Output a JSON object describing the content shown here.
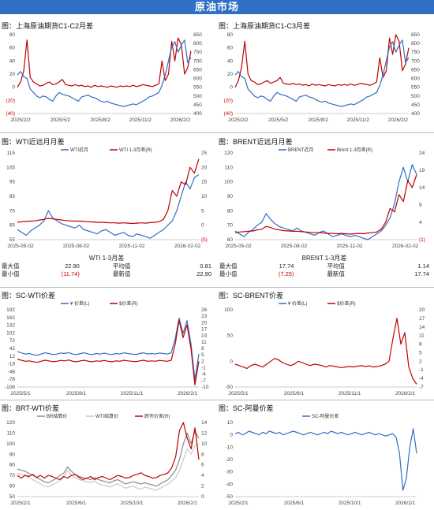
{
  "banner": "原油市场",
  "colors": {
    "blue": "#2f6fc4",
    "red": "#c00000",
    "gray": "#b7b7b7"
  },
  "sections": {
    "s1": "图：上海原油期货C1-C2月差",
    "s2": "图：上海原油期货C1-C3月差",
    "s3": "图：WTI近远月月差",
    "s4": "图：BRENT近远月月差",
    "s5": "图：SC-WTI价差",
    "s6": "图：SC-BRENT价差",
    "s7": "图：BRT-WTI价差",
    "s8": "图：SC-阿曼价差"
  },
  "wti_table": {
    "title": "WTI 1-3月差",
    "rows": [
      [
        "最大值",
        "22.90",
        "平均值",
        "0.81"
      ],
      [
        "最小值",
        "(11.74)",
        "最新值",
        "22.90"
      ]
    ]
  },
  "brent_table": {
    "title": "BRENT 1-3月差",
    "rows": [
      [
        "最大值",
        "17.74",
        "平均值",
        "1.14"
      ],
      [
        "最小值",
        "(7.25)",
        "最新值",
        "17.74"
      ]
    ]
  },
  "chart_data": [
    {
      "id": "c1",
      "type": "line",
      "x_ticks": [
        "2025/2/2",
        "2025/5/2",
        "2025/8/2",
        "2025/11/2",
        "2026/2/2"
      ],
      "y_left_ticks": [
        "80",
        "60",
        "40",
        "20",
        "0",
        "(20)",
        "(40)"
      ],
      "y_left": [
        -40,
        80
      ],
      "y_right_ticks": [
        "850",
        "800",
        "750",
        "700",
        "650",
        "600",
        "550",
        "500",
        "450",
        "400"
      ],
      "y_right": [
        400,
        850
      ],
      "series": [
        {
          "axis": "left",
          "color": "#c00000",
          "values": [
            0,
            8,
            25,
            72,
            15,
            8,
            5,
            2,
            3,
            6,
            8,
            4,
            5,
            8,
            12,
            4,
            3,
            2,
            4,
            2,
            3,
            1,
            2,
            0,
            3,
            1,
            2,
            1,
            0,
            2,
            1,
            0,
            2,
            1,
            2,
            1,
            3,
            1,
            2,
            4,
            3,
            2,
            1,
            3,
            5,
            40,
            10,
            20,
            70,
            40,
            75,
            65,
            20,
            30,
            55
          ]
        },
        {
          "axis": "right",
          "color": "#2f6fc4",
          "values": [
            620,
            640,
            610,
            600,
            540,
            520,
            500,
            490,
            500,
            495,
            480,
            470,
            500,
            520,
            510,
            505,
            500,
            490,
            480,
            470,
            495,
            500,
            505,
            495,
            490,
            480,
            470,
            465,
            470,
            460,
            455,
            450,
            445,
            440,
            445,
            450,
            455,
            450,
            460,
            470,
            480,
            495,
            500,
            510,
            520,
            560,
            620,
            700,
            780,
            810,
            750,
            790,
            820,
            690,
            720
          ]
        }
      ]
    },
    {
      "id": "c2",
      "type": "line",
      "x_ticks": [
        "2025/2/2",
        "2025/5/2",
        "2025/8/2",
        "2025/11/2",
        "2026/2/2"
      ],
      "y_left_ticks": [
        "80",
        "60",
        "40",
        "20",
        "0",
        "(20)",
        "(40)"
      ],
      "y_left": [
        -40,
        80
      ],
      "y_right_ticks": [
        "850",
        "800",
        "750",
        "700",
        "650",
        "600",
        "550",
        "500",
        "450",
        "400"
      ],
      "y_right": [
        400,
        850
      ],
      "series": [
        {
          "axis": "left",
          "color": "#c00000",
          "values": [
            0,
            10,
            30,
            70,
            20,
            10,
            8,
            4,
            5,
            8,
            10,
            6,
            8,
            10,
            15,
            6,
            5,
            4,
            6,
            4,
            5,
            3,
            4,
            2,
            5,
            3,
            4,
            3,
            2,
            4,
            3,
            2,
            4,
            3,
            4,
            3,
            5,
            3,
            4,
            6,
            5,
            4,
            3,
            5,
            8,
            45,
            15,
            25,
            75,
            50,
            80,
            70,
            25,
            35,
            60
          ]
        },
        {
          "axis": "right",
          "color": "#2f6fc4",
          "values": [
            620,
            640,
            610,
            600,
            540,
            520,
            500,
            490,
            500,
            495,
            480,
            470,
            500,
            520,
            510,
            505,
            500,
            490,
            480,
            470,
            495,
            500,
            505,
            495,
            490,
            480,
            470,
            465,
            470,
            460,
            455,
            450,
            445,
            440,
            445,
            450,
            455,
            450,
            460,
            470,
            480,
            495,
            500,
            510,
            520,
            560,
            620,
            700,
            780,
            810,
            750,
            790,
            820,
            690,
            720
          ]
        }
      ]
    },
    {
      "id": "c3",
      "type": "line",
      "x_ticks": [
        "2025-05-02",
        "2025-08-02",
        "2025-11-02",
        "2026-02-02"
      ],
      "y_left_ticks": [
        "115",
        "105",
        "95",
        "85",
        "75",
        "65",
        "55"
      ],
      "y_left": [
        55,
        115
      ],
      "y_right_ticks": [
        "25",
        "20",
        "15",
        "10",
        "5",
        "0",
        "(5)"
      ],
      "y_right": [
        -5,
        25
      ],
      "legend": [
        "WTI近月",
        "WTI 1-3月差(R)"
      ],
      "series": [
        {
          "name": "WTI近月",
          "axis": "left",
          "color": "#2f6fc4",
          "values": [
            62,
            60,
            58,
            61,
            63,
            65,
            68,
            75,
            70,
            68,
            66,
            65,
            64,
            63,
            65,
            62,
            61,
            60,
            59,
            61,
            62,
            60,
            58,
            59,
            60,
            58,
            57,
            59,
            58,
            57,
            56,
            58,
            60,
            62,
            65,
            68,
            75,
            85,
            95,
            90,
            98,
            100
          ]
        },
        {
          "name": "WTI 1-3月差(R)",
          "axis": "right",
          "color": "#c00000",
          "values": [
            1.0,
            1.2,
            1.3,
            1.4,
            1.5,
            1.8,
            2.0,
            2.4,
            2.2,
            2.0,
            1.8,
            1.6,
            1.5,
            1.4,
            1.4,
            1.3,
            1.2,
            1.1,
            1.0,
            1.0,
            0.9,
            0.8,
            0.8,
            0.7,
            0.8,
            0.7,
            0.6,
            0.7,
            0.8,
            0.7,
            0.9,
            1.0,
            1.2,
            2.0,
            5.0,
            12.0,
            10.0,
            15.0,
            14.0,
            20.0,
            18.0,
            22.9
          ]
        }
      ]
    },
    {
      "id": "c4",
      "type": "line",
      "x_ticks": [
        "2025-05-02",
        "2025-08-02",
        "2025-11-02",
        "2026-02-02"
      ],
      "y_left_ticks": [
        "120",
        "110",
        "100",
        "90",
        "80",
        "70",
        "60"
      ],
      "y_left": [
        60,
        120
      ],
      "y_right_ticks": [
        "24",
        "19",
        "14",
        "9",
        "4",
        "(1)"
      ],
      "y_right": [
        -1,
        24
      ],
      "legend": [
        "BRENT近月",
        "Brent 1-3月差(R)"
      ],
      "series": [
        {
          "name": "BRENT近月",
          "axis": "left",
          "color": "#2f6fc4",
          "values": [
            66,
            64,
            62,
            65,
            67,
            70,
            72,
            78,
            74,
            71,
            69,
            68,
            67,
            66,
            68,
            66,
            65,
            64,
            63,
            65,
            66,
            64,
            62,
            63,
            64,
            63,
            62,
            63,
            62,
            61,
            60,
            62,
            64,
            66,
            70,
            75,
            85,
            100,
            110,
            100,
            112,
            105
          ]
        },
        {
          "name": "Brent 1-3月差(R)",
          "axis": "right",
          "color": "#c00000",
          "values": [
            1.0,
            1.2,
            1.3,
            1.4,
            1.5,
            1.8,
            2.0,
            2.8,
            2.5,
            2.0,
            1.8,
            1.6,
            1.5,
            1.4,
            1.4,
            1.3,
            1.2,
            1.1,
            1.0,
            1.0,
            0.9,
            0.8,
            0.8,
            0.7,
            0.8,
            0.7,
            0.6,
            0.7,
            0.8,
            0.7,
            0.9,
            1.0,
            1.2,
            2.0,
            4.0,
            8.0,
            7.0,
            12.0,
            10.0,
            16.0,
            14.0,
            17.74
          ]
        }
      ]
    },
    {
      "id": "c5",
      "type": "line",
      "x_ticks": [
        "2025/5/1",
        "2025/8/1",
        "2025/11/1",
        "2026/2/1"
      ],
      "y_left_ticks": [
        "192",
        "162",
        "132",
        "102",
        "72",
        "42",
        "12",
        "-18",
        "-48",
        "-78",
        "-108"
      ],
      "y_left": [
        -108,
        192
      ],
      "y_right_ticks": [
        "26",
        "23",
        "20",
        "17",
        "14",
        "11",
        "8",
        "5",
        "2",
        "-1",
        "-4",
        "-7",
        "-10"
      ],
      "y_right": [
        -10,
        26
      ],
      "legend": [
        "¥ 价差(L)",
        "$价差(R)"
      ],
      "series": [
        {
          "name": "¥ 价差(L)",
          "axis": "left",
          "color": "#2f6fc4",
          "values": [
            30,
            25,
            20,
            22,
            18,
            15,
            20,
            25,
            22,
            18,
            20,
            24,
            22,
            26,
            20,
            18,
            22,
            25,
            20,
            18,
            22,
            20,
            24,
            20,
            18,
            22,
            20,
            25,
            22,
            20,
            18,
            22,
            25,
            20,
            22,
            20,
            24,
            22,
            20,
            25,
            80,
            160,
            100,
            150,
            60,
            -80,
            20
          ]
        },
        {
          "name": "$价差(R)",
          "axis": "right",
          "color": "#c00000",
          "values": [
            3,
            2.5,
            2,
            2.2,
            1.8,
            1.5,
            2,
            2.5,
            2.2,
            1.8,
            2,
            2.4,
            2.2,
            2.6,
            2,
            1.8,
            2.2,
            2.5,
            2,
            1.8,
            2.2,
            2,
            2.4,
            2,
            1.8,
            2.2,
            2,
            2.5,
            2.2,
            2,
            1.8,
            2.2,
            2.5,
            2,
            2.2,
            2,
            2.4,
            2.2,
            2,
            2.5,
            10,
            21,
            13,
            19,
            8,
            -9,
            2
          ]
        }
      ]
    },
    {
      "id": "c6",
      "type": "line",
      "x_ticks": [
        "2025/5/1",
        "2025/8/1",
        "2025/11/1",
        "2026/2/1"
      ],
      "y_left_ticks": [
        "100",
        "50",
        "0",
        "-50"
      ],
      "y_left": [
        -50,
        100
      ],
      "y_right_ticks": [
        "20",
        "17",
        "14",
        "11",
        "8",
        "5",
        "2",
        "-1",
        "-4",
        "-7"
      ],
      "y_right": [
        -7,
        20
      ],
      "legend": [
        "¥ 价差(L)",
        "$价差(R)"
      ],
      "series": [
        {
          "name": "$价差(R)",
          "axis": "right",
          "color": "#c00000",
          "values": [
            1,
            0.5,
            0,
            -0.5,
            0.5,
            1,
            0.5,
            0,
            1,
            2,
            3,
            2.5,
            1.5,
            1,
            0.5,
            1,
            2,
            1.5,
            1,
            0.5,
            1,
            0.8,
            0.5,
            0,
            0.5,
            0.3,
            0,
            -0.2,
            0,
            0.2,
            0,
            0.3,
            0.5,
            0.2,
            0.4,
            0,
            0.2,
            0.5,
            1,
            2,
            10,
            17,
            8,
            12,
            0,
            -4,
            -6
          ]
        }
      ]
    },
    {
      "id": "c7",
      "type": "line",
      "x_ticks": [
        "2025/2/1",
        "2025/6/1",
        "2025/10/1",
        "2026/2/1"
      ],
      "y_left_ticks": [
        "120",
        "110",
        "100",
        "90",
        "80",
        "70",
        "60",
        "50"
      ],
      "y_left": [
        50,
        120
      ],
      "y_right_ticks": [
        "14",
        "12",
        "10",
        "8",
        "6",
        "4",
        "2",
        "0"
      ],
      "y_right": [
        0,
        14
      ],
      "legend": [
        "BR结算价",
        "WTI结算价",
        "跨市价差(R)"
      ],
      "series": [
        {
          "name": "BR结算价",
          "axis": "left",
          "color": "#8a8a8a",
          "values": [
            76,
            75,
            74,
            72,
            70,
            68,
            66,
            64,
            63,
            65,
            67,
            70,
            72,
            78,
            74,
            71,
            69,
            68,
            67,
            66,
            68,
            66,
            65,
            64,
            63,
            65,
            66,
            64,
            62,
            63,
            64,
            63,
            62,
            63,
            62,
            61,
            60,
            62,
            64,
            66,
            70,
            75,
            85,
            100,
            110,
            100,
            112,
            105
          ]
        },
        {
          "name": "WTI结算价",
          "axis": "left",
          "color": "#c8c8c8",
          "values": [
            72,
            71,
            70,
            68,
            66,
            64,
            62,
            60,
            59,
            61,
            63,
            65,
            68,
            75,
            70,
            68,
            66,
            65,
            64,
            63,
            65,
            62,
            61,
            60,
            59,
            61,
            62,
            60,
            58,
            59,
            60,
            58,
            57,
            59,
            58,
            57,
            56,
            58,
            60,
            62,
            65,
            68,
            75,
            85,
            95,
            90,
            98,
            100
          ]
        },
        {
          "name": "跨市价差(R)",
          "axis": "right",
          "color": "#c00000",
          "values": [
            4,
            3.5,
            4,
            3.8,
            4.2,
            3.6,
            4,
            3.5,
            4,
            3.8,
            3.5,
            3.2,
            3.8,
            3.5,
            4,
            4.2,
            3.6,
            3.2,
            3.5,
            3.8,
            3.2,
            3.6,
            3.8,
            3.5,
            3.2,
            3.6,
            4,
            3.8,
            3.5,
            3.6,
            4,
            4.2,
            4.5,
            4,
            3.8,
            3.5,
            3.6,
            4,
            4.2,
            4.5,
            5.5,
            7.5,
            12.5,
            14,
            11,
            9,
            13,
            7
          ]
        }
      ]
    },
    {
      "id": "c8",
      "type": "line",
      "x_ticks": [
        "2025/2/1",
        "2025/6/1",
        "2025/10/1",
        "2026/2/1"
      ],
      "y_left_ticks": [
        "10",
        "0",
        "-10",
        "-20",
        "-30",
        "-40",
        "-50"
      ],
      "y_left": [
        -50,
        10
      ],
      "legend": [
        "SC-阿曼价差"
      ],
      "series": [
        {
          "name": "SC-阿曼价差",
          "axis": "left",
          "color": "#2f6fc4",
          "values": [
            1,
            2,
            0,
            1,
            3,
            2,
            1,
            0,
            2,
            1,
            3,
            2,
            1,
            2,
            0,
            1,
            2,
            3,
            2,
            1,
            0,
            1,
            2,
            1,
            0,
            1,
            2,
            1,
            3,
            2,
            1,
            2,
            1,
            0,
            1,
            2,
            1,
            0,
            1,
            2,
            1,
            0,
            1,
            0,
            -1,
            0,
            1,
            -2,
            -15,
            -45,
            -35,
            -10,
            5,
            -15
          ]
        }
      ]
    }
  ]
}
